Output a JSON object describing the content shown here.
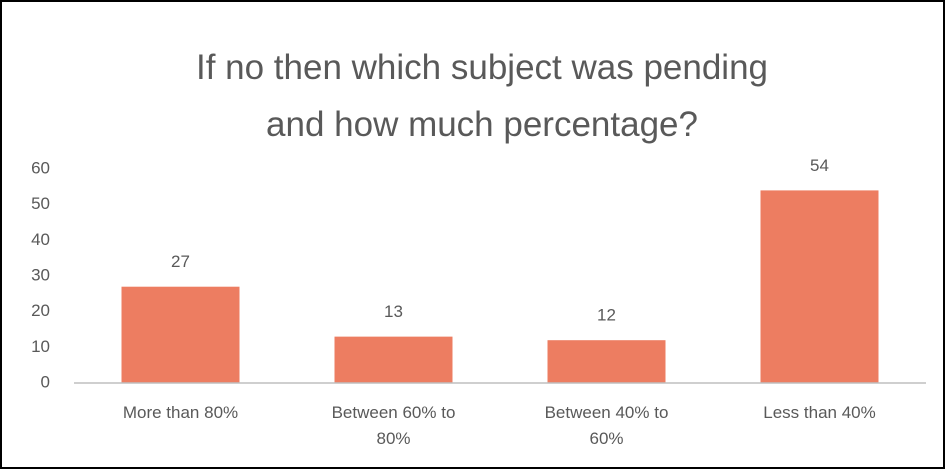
{
  "chart_data": {
    "type": "bar",
    "title": "If no then which subject was pending and how much percentage?",
    "categories": [
      "More than 80%",
      "Between 60% to 80%",
      "Between 40% to 60%",
      "Less than 40%"
    ],
    "values": [
      27,
      13,
      12,
      54
    ],
    "color": "#ed7d61",
    "ylim": [
      0,
      60
    ],
    "yticks": [
      0,
      10,
      20,
      30,
      40,
      50,
      60
    ],
    "grid": false
  }
}
